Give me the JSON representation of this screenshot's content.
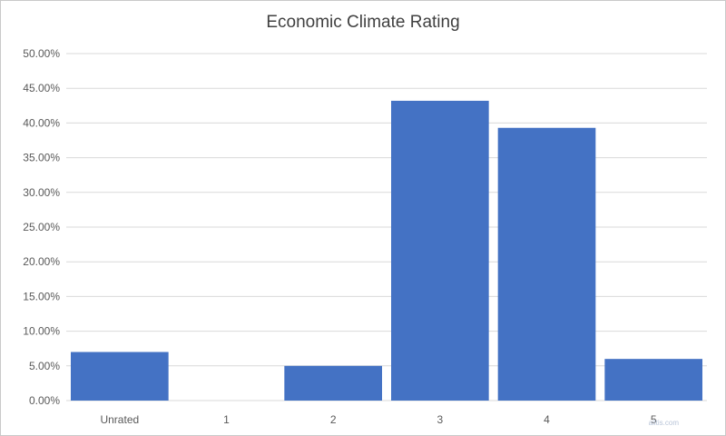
{
  "chart_data": {
    "type": "bar",
    "title": "Economic Climate Rating",
    "categories": [
      "Unrated",
      "1",
      "2",
      "3",
      "4",
      "5"
    ],
    "values": [
      7.0,
      0.0,
      5.0,
      43.2,
      39.3,
      6.0
    ],
    "ylim": [
      0,
      50
    ],
    "ytick_step": 5,
    "ytick_format": "percent_2dp",
    "grid": true,
    "legend": "none",
    "bar_color": "#4472c4",
    "grid_color": "#d9d9d9"
  },
  "watermark_text": "alltis.com"
}
